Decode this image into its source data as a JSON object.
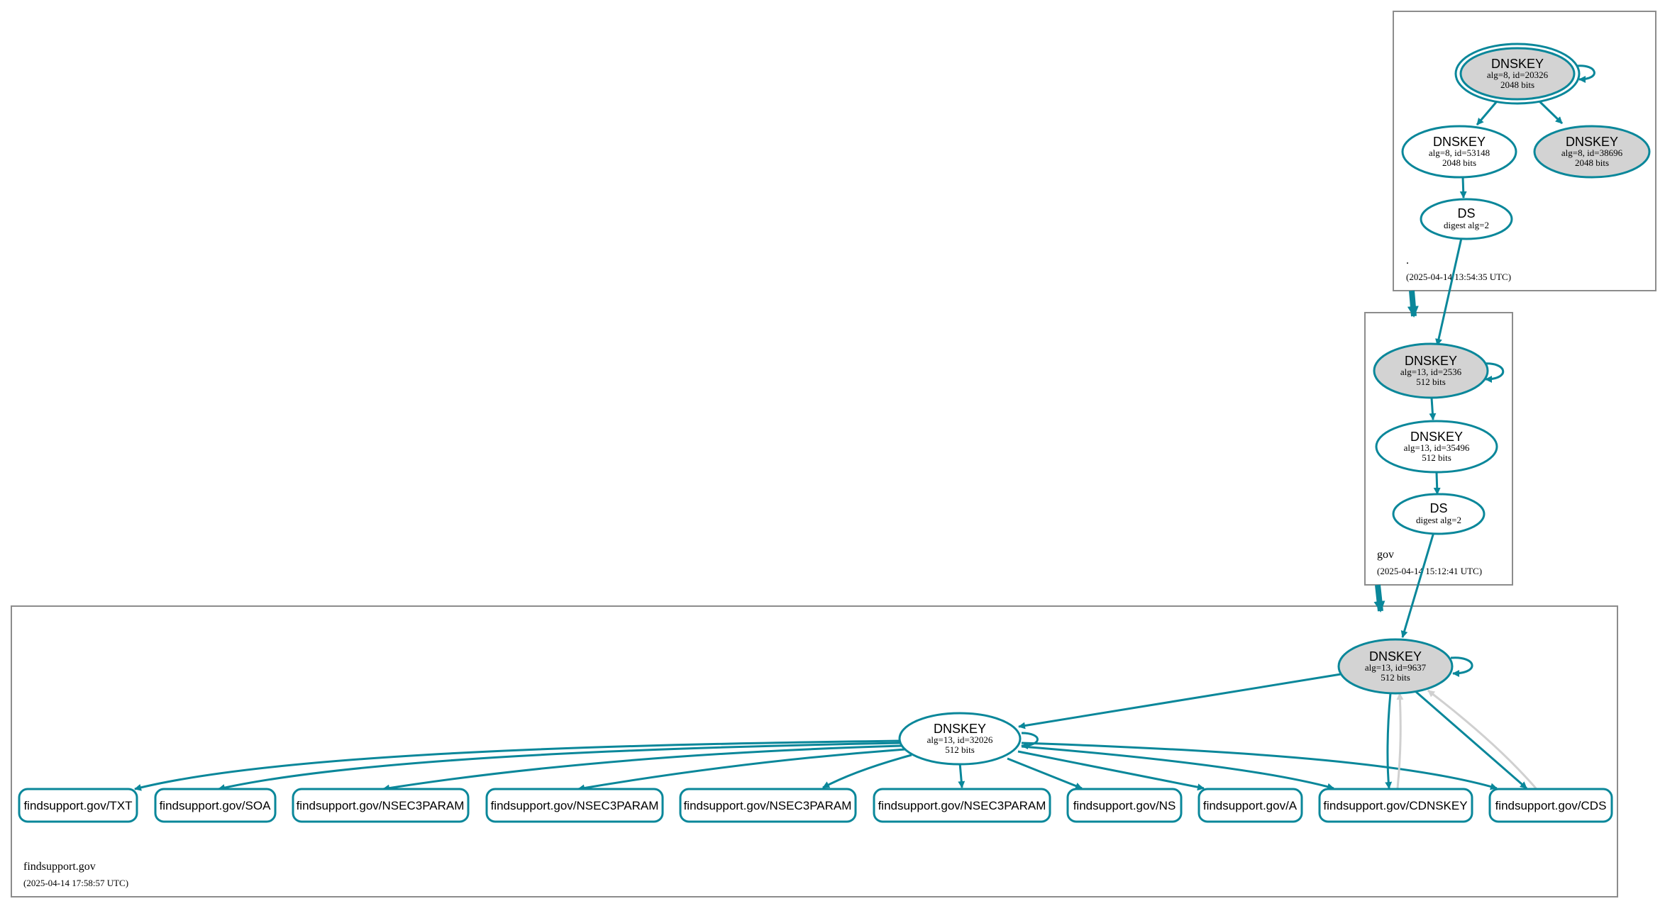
{
  "zones": {
    "root": {
      "name": ".",
      "timestamp": "(2025-04-14 13:54:35 UTC)"
    },
    "gov": {
      "name": "gov",
      "timestamp": "(2025-04-14 15:12:41 UTC)"
    },
    "findsupport": {
      "name": "findsupport.gov",
      "timestamp": "(2025-04-14 17:58:57 UTC)"
    }
  },
  "nodes": {
    "root_ksk": {
      "title": "DNSKEY",
      "line1": "alg=8, id=20326",
      "line2": "2048 bits"
    },
    "root_zsk": {
      "title": "DNSKEY",
      "line1": "alg=8, id=53148",
      "line2": "2048 bits"
    },
    "root_key3": {
      "title": "DNSKEY",
      "line1": "alg=8, id=38696",
      "line2": "2048 bits"
    },
    "root_ds": {
      "title": "DS",
      "line1": "digest alg=2"
    },
    "gov_ksk": {
      "title": "DNSKEY",
      "line1": "alg=13, id=2536",
      "line2": "512 bits"
    },
    "gov_zsk": {
      "title": "DNSKEY",
      "line1": "alg=13, id=35496",
      "line2": "512 bits"
    },
    "gov_ds": {
      "title": "DS",
      "line1": "digest alg=2"
    },
    "fs_ksk": {
      "title": "DNSKEY",
      "line1": "alg=13, id=9637",
      "line2": "512 bits"
    },
    "fs_zsk": {
      "title": "DNSKEY",
      "line1": "alg=13, id=32026",
      "line2": "512 bits"
    }
  },
  "records": [
    "findsupport.gov/TXT",
    "findsupport.gov/SOA",
    "findsupport.gov/NSEC3PARAM",
    "findsupport.gov/NSEC3PARAM",
    "findsupport.gov/NSEC3PARAM",
    "findsupport.gov/NSEC3PARAM",
    "findsupport.gov/NS",
    "findsupport.gov/A",
    "findsupport.gov/CDNSKEY",
    "findsupport.gov/CDS"
  ],
  "colors": {
    "edge": "#0a879a",
    "grey_edge": "#d0d0d0",
    "ksk_fill": "#d3d3d3",
    "zone_border": "#8c8c8c"
  }
}
